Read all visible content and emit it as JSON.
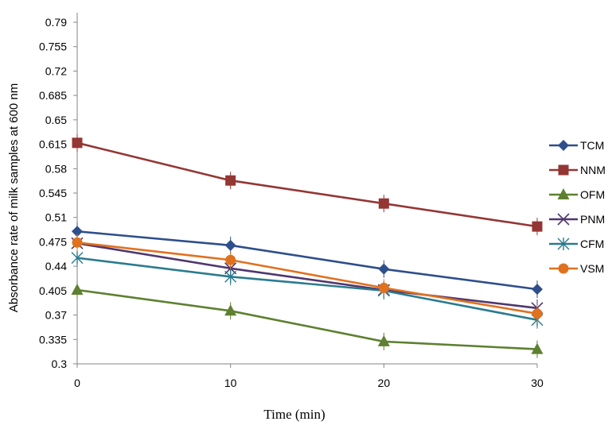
{
  "chart_data": {
    "type": "line",
    "title": "",
    "xlabel": "Time (min)",
    "ylabel": "Absorbance rate of milk samples at 600 nm",
    "x": [
      0,
      10,
      20,
      30
    ],
    "xticks": [
      "0",
      "10",
      "20",
      "30"
    ],
    "yticks": [
      "0.3",
      "0.335",
      "0.37",
      "0.405",
      "0.44",
      "0.475",
      "0.51",
      "0.545",
      "0.58",
      "0.615",
      "0.65",
      "0.685",
      "0.72",
      "0.755",
      "0.79"
    ],
    "ylim": [
      0.3,
      0.79
    ],
    "xlim": [
      0,
      30
    ],
    "grid": false,
    "legend_position": "right",
    "series": [
      {
        "name": "TCM",
        "color": "#2E4F8C",
        "marker": "diamond",
        "points": [
          [
            0,
            0.49
          ],
          [
            10,
            0.47
          ],
          [
            20,
            0.436
          ],
          [
            30,
            0.407
          ]
        ]
      },
      {
        "name": "NNM",
        "color": "#943634",
        "marker": "square",
        "points": [
          [
            0,
            0.617
          ],
          [
            10,
            0.563
          ],
          [
            20,
            0.53
          ],
          [
            30,
            0.497
          ]
        ]
      },
      {
        "name": "OFM",
        "color": "#5E8030",
        "marker": "triangle",
        "points": [
          [
            0,
            0.406
          ],
          [
            10,
            0.376
          ],
          [
            20,
            0.332
          ],
          [
            30,
            0.321
          ]
        ]
      },
      {
        "name": "PNM",
        "color": "#50376E",
        "marker": "x",
        "points": [
          [
            0,
            0.473
          ],
          [
            10,
            0.437
          ],
          [
            20,
            0.406
          ],
          [
            30,
            0.38
          ]
        ]
      },
      {
        "name": "CFM",
        "color": "#2B7B8E",
        "marker": "star",
        "points": [
          [
            0,
            0.452
          ],
          [
            10,
            0.425
          ],
          [
            20,
            0.405
          ],
          [
            30,
            0.363
          ]
        ]
      },
      {
        "name": "VSM",
        "color": "#E0711F",
        "marker": "circle",
        "points": [
          [
            0,
            0.474
          ],
          [
            10,
            0.449
          ],
          [
            20,
            0.409
          ],
          [
            30,
            0.372
          ]
        ]
      }
    ]
  }
}
